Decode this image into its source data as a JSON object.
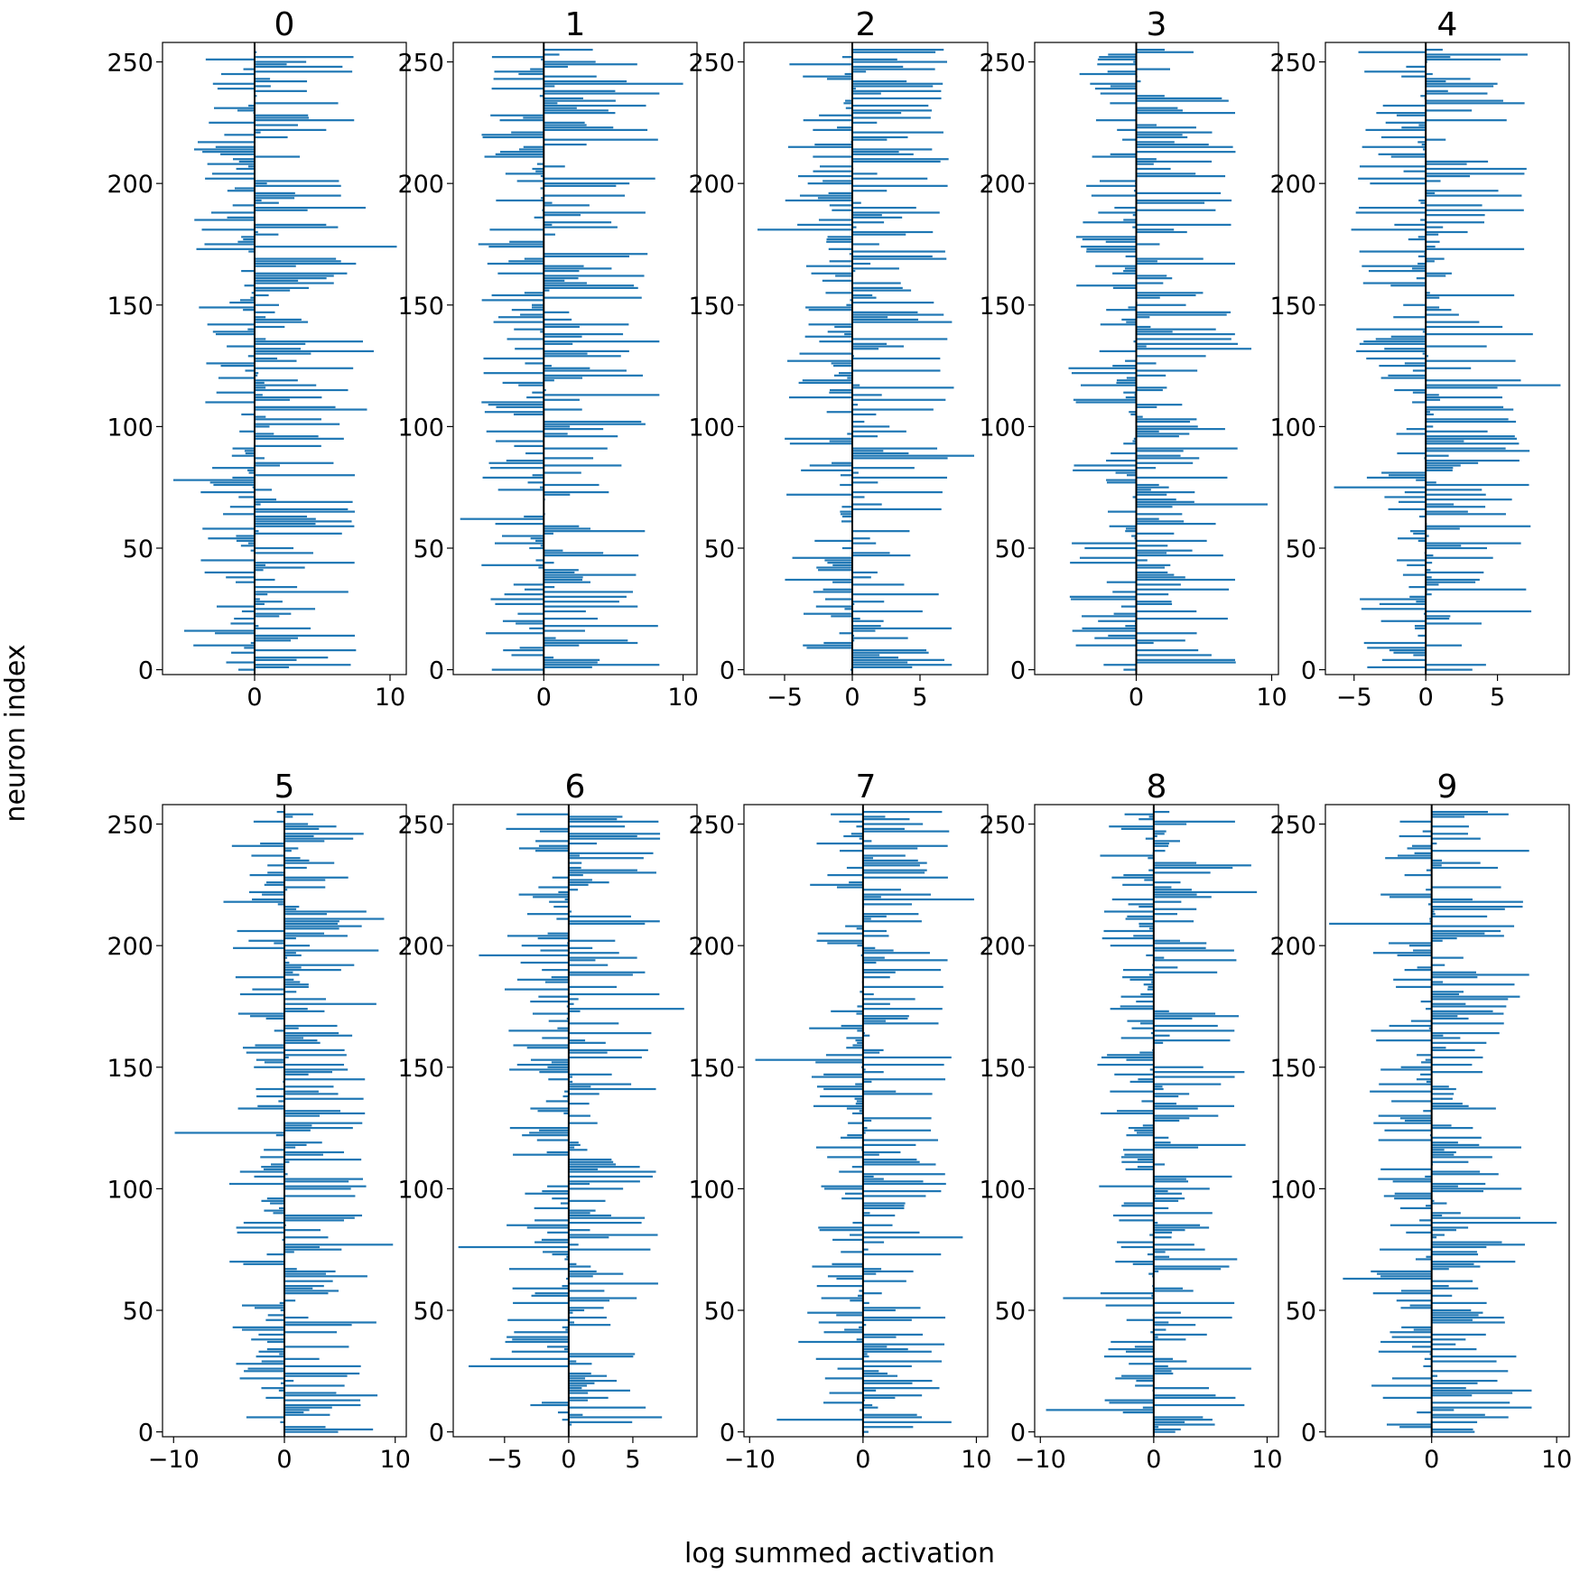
{
  "figure": {
    "ylabel": "neuron index",
    "xlabel": "log summed activation"
  },
  "chart_data": [
    {
      "type": "bar",
      "orientation": "horizontal",
      "title": "0",
      "xlim": [
        -6.8,
        11.2
      ],
      "ylim": [
        -2,
        258
      ],
      "xticks": [
        0,
        10
      ],
      "yticks": [
        0,
        50,
        100,
        150,
        200,
        250
      ],
      "bar_color": "#1f77b4",
      "grid": false,
      "peaks": [
        {
          "y": 252,
          "x": 7.3
        },
        {
          "y": 224,
          "x": 3.2
        },
        {
          "y": 190,
          "x": 8.2
        },
        {
          "y": 174,
          "x": 10.5
        },
        {
          "y": 173,
          "x": -4.3
        },
        {
          "y": 135,
          "x": 8.0
        },
        {
          "y": 131,
          "x": 8.8
        },
        {
          "y": 107,
          "x": 8.3
        },
        {
          "y": 78,
          "x": -6.0
        },
        {
          "y": 65,
          "x": 7.4
        },
        {
          "y": 60,
          "x": 4.5
        },
        {
          "y": 16,
          "x": -5.2
        },
        {
          "y": 14,
          "x": 7.4
        },
        {
          "y": 0,
          "x": -1.2
        }
      ]
    },
    {
      "type": "bar",
      "orientation": "horizontal",
      "title": "1",
      "xlim": [
        -6.5,
        11.0
      ],
      "ylim": [
        -2,
        258
      ],
      "xticks": [
        0,
        10
      ],
      "yticks": [
        0,
        50,
        100,
        150,
        200,
        250
      ],
      "bar_color": "#1f77b4",
      "grid": false,
      "peaks": [
        {
          "y": 241,
          "x": 10.0
        },
        {
          "y": 237,
          "x": 8.3
        },
        {
          "y": 218,
          "x": 8.2
        },
        {
          "y": 202,
          "x": 8.0
        },
        {
          "y": 175,
          "x": -4.7
        },
        {
          "y": 148,
          "x": -2.3
        },
        {
          "y": 135,
          "x": 8.3
        },
        {
          "y": 113,
          "x": 8.3
        },
        {
          "y": 102,
          "x": 7.0
        },
        {
          "y": 62,
          "x": -6.0
        },
        {
          "y": 47,
          "x": 6.8
        },
        {
          "y": 18,
          "x": 8.2
        },
        {
          "y": 2,
          "x": 8.3
        }
      ]
    },
    {
      "type": "bar",
      "orientation": "horizontal",
      "title": "2",
      "xlim": [
        -8,
        10
      ],
      "ylim": [
        -2,
        258
      ],
      "xticks": [
        -5,
        0,
        5
      ],
      "yticks": [
        0,
        50,
        100,
        150,
        200,
        250
      ],
      "bar_color": "#1f77b4",
      "grid": false,
      "peaks": [
        {
          "y": 250,
          "x": 7.0
        },
        {
          "y": 207,
          "x": -2.4
        },
        {
          "y": 181,
          "x": -7.0
        },
        {
          "y": 127,
          "x": -4.8
        },
        {
          "y": 116,
          "x": 7.5
        },
        {
          "y": 88,
          "x": 9.0
        },
        {
          "y": 79,
          "x": 7.0
        },
        {
          "y": 29,
          "x": -2.0
        },
        {
          "y": 23,
          "x": -3.6
        },
        {
          "y": 4,
          "x": 6.8
        }
      ]
    },
    {
      "type": "bar",
      "orientation": "horizontal",
      "title": "3",
      "xlim": [
        -7.5,
        10.5
      ],
      "ylim": [
        -2,
        258
      ],
      "xticks": [
        0,
        10
      ],
      "yticks": [
        0,
        50,
        100,
        150,
        200,
        250
      ],
      "bar_color": "#1f77b4",
      "grid": false,
      "peaks": [
        {
          "y": 229,
          "x": 7.3
        },
        {
          "y": 183,
          "x": 7.0
        },
        {
          "y": 167,
          "x": 7.3
        },
        {
          "y": 132,
          "x": 8.5
        },
        {
          "y": 124,
          "x": -5.0
        },
        {
          "y": 84,
          "x": -4.6
        },
        {
          "y": 68,
          "x": 9.7
        },
        {
          "y": 37,
          "x": 7.3
        },
        {
          "y": 17,
          "x": -4.0
        },
        {
          "y": 4,
          "x": 7.3
        }
      ]
    },
    {
      "type": "bar",
      "orientation": "horizontal",
      "title": "4",
      "xlim": [
        -7,
        10
      ],
      "ylim": [
        -2,
        258
      ],
      "xticks": [
        -5,
        0,
        5
      ],
      "yticks": [
        0,
        50,
        100,
        150,
        200,
        250
      ],
      "bar_color": "#1f77b4",
      "grid": false,
      "peaks": [
        {
          "y": 254,
          "x": -4.7
        },
        {
          "y": 241,
          "x": 5.0
        },
        {
          "y": 181,
          "x": -5.2
        },
        {
          "y": 117,
          "x": 9.4
        },
        {
          "y": 116,
          "x": 5.0
        },
        {
          "y": 75,
          "x": -6.4
        },
        {
          "y": 76,
          "x": 7.2
        },
        {
          "y": 29,
          "x": -4.6
        },
        {
          "y": 2,
          "x": 4.2
        }
      ]
    },
    {
      "type": "bar",
      "orientation": "horizontal",
      "title": "5",
      "xlim": [
        -11,
        11
      ],
      "ylim": [
        -2,
        258
      ],
      "xticks": [
        -10,
        0,
        10
      ],
      "yticks": [
        0,
        50,
        100,
        150,
        200,
        250
      ],
      "bar_color": "#1f77b4",
      "grid": false,
      "peaks": [
        {
          "y": 218,
          "x": -5.5
        },
        {
          "y": 211,
          "x": 9.0
        },
        {
          "y": 198,
          "x": 8.5
        },
        {
          "y": 176,
          "x": 8.3
        },
        {
          "y": 123,
          "x": -9.9
        },
        {
          "y": 103,
          "x": 5.8
        },
        {
          "y": 77,
          "x": 9.8
        },
        {
          "y": 45,
          "x": 8.3
        },
        {
          "y": 15,
          "x": 8.4
        },
        {
          "y": 1,
          "x": 8.0
        }
      ]
    },
    {
      "type": "bar",
      "orientation": "horizontal",
      "title": "6",
      "xlim": [
        -9,
        10
      ],
      "ylim": [
        -2,
        258
      ],
      "xticks": [
        -5,
        0,
        5
      ],
      "yticks": [
        0,
        50,
        100,
        150,
        200,
        250
      ],
      "bar_color": "#1f77b4",
      "grid": false,
      "peaks": [
        {
          "y": 251,
          "x": 7.0
        },
        {
          "y": 196,
          "x": -7.0
        },
        {
          "y": 174,
          "x": 9.0
        },
        {
          "y": 107,
          "x": 6.8
        },
        {
          "y": 76,
          "x": -8.6
        },
        {
          "y": 30,
          "x": -6.1
        },
        {
          "y": 27,
          "x": -7.8
        },
        {
          "y": 10,
          "x": 6.0
        }
      ]
    },
    {
      "type": "bar",
      "orientation": "horizontal",
      "title": "7",
      "xlim": [
        -10.5,
        11
      ],
      "ylim": [
        -2,
        258
      ],
      "xticks": [
        -10,
        0,
        10
      ],
      "yticks": [
        0,
        50,
        100,
        150,
        200,
        250
      ],
      "bar_color": "#1f77b4",
      "grid": false,
      "peaks": [
        {
          "y": 247,
          "x": 7.6
        },
        {
          "y": 219,
          "x": 9.8
        },
        {
          "y": 153,
          "x": -9.5
        },
        {
          "y": 154,
          "x": 7.8
        },
        {
          "y": 80,
          "x": 8.8
        },
        {
          "y": 37,
          "x": -5.7
        },
        {
          "y": 5,
          "x": -7.6
        },
        {
          "y": 4,
          "x": 7.8
        }
      ]
    },
    {
      "type": "bar",
      "orientation": "horizontal",
      "title": "8",
      "xlim": [
        -10.5,
        11
      ],
      "ylim": [
        -2,
        258
      ],
      "xticks": [
        -10,
        0,
        10
      ],
      "yticks": [
        0,
        50,
        100,
        150,
        200,
        250
      ],
      "bar_color": "#1f77b4",
      "grid": false,
      "peaks": [
        {
          "y": 222,
          "x": 9.1
        },
        {
          "y": 233,
          "x": 8.6
        },
        {
          "y": 148,
          "x": 8.0
        },
        {
          "y": 118,
          "x": 8.1
        },
        {
          "y": 55,
          "x": -8.0
        },
        {
          "y": 26,
          "x": 8.6
        },
        {
          "y": 9,
          "x": -9.5
        },
        {
          "y": 11,
          "x": 8.0
        }
      ]
    },
    {
      "type": "bar",
      "orientation": "horizontal",
      "title": "9",
      "xlim": [
        -8.5,
        11
      ],
      "ylim": [
        -2,
        258
      ],
      "xticks": [
        0,
        10
      ],
      "yticks": [
        0,
        50,
        100,
        150,
        200,
        250
      ],
      "bar_color": "#1f77b4",
      "grid": false,
      "peaks": [
        {
          "y": 255,
          "x": 4.5
        },
        {
          "y": 239,
          "x": 7.8
        },
        {
          "y": 209,
          "x": -8.2
        },
        {
          "y": 188,
          "x": 7.8
        },
        {
          "y": 86,
          "x": 10.0
        },
        {
          "y": 63,
          "x": -7.1
        },
        {
          "y": 17,
          "x": 8.0
        },
        {
          "y": 10,
          "x": 8.0
        }
      ]
    }
  ]
}
